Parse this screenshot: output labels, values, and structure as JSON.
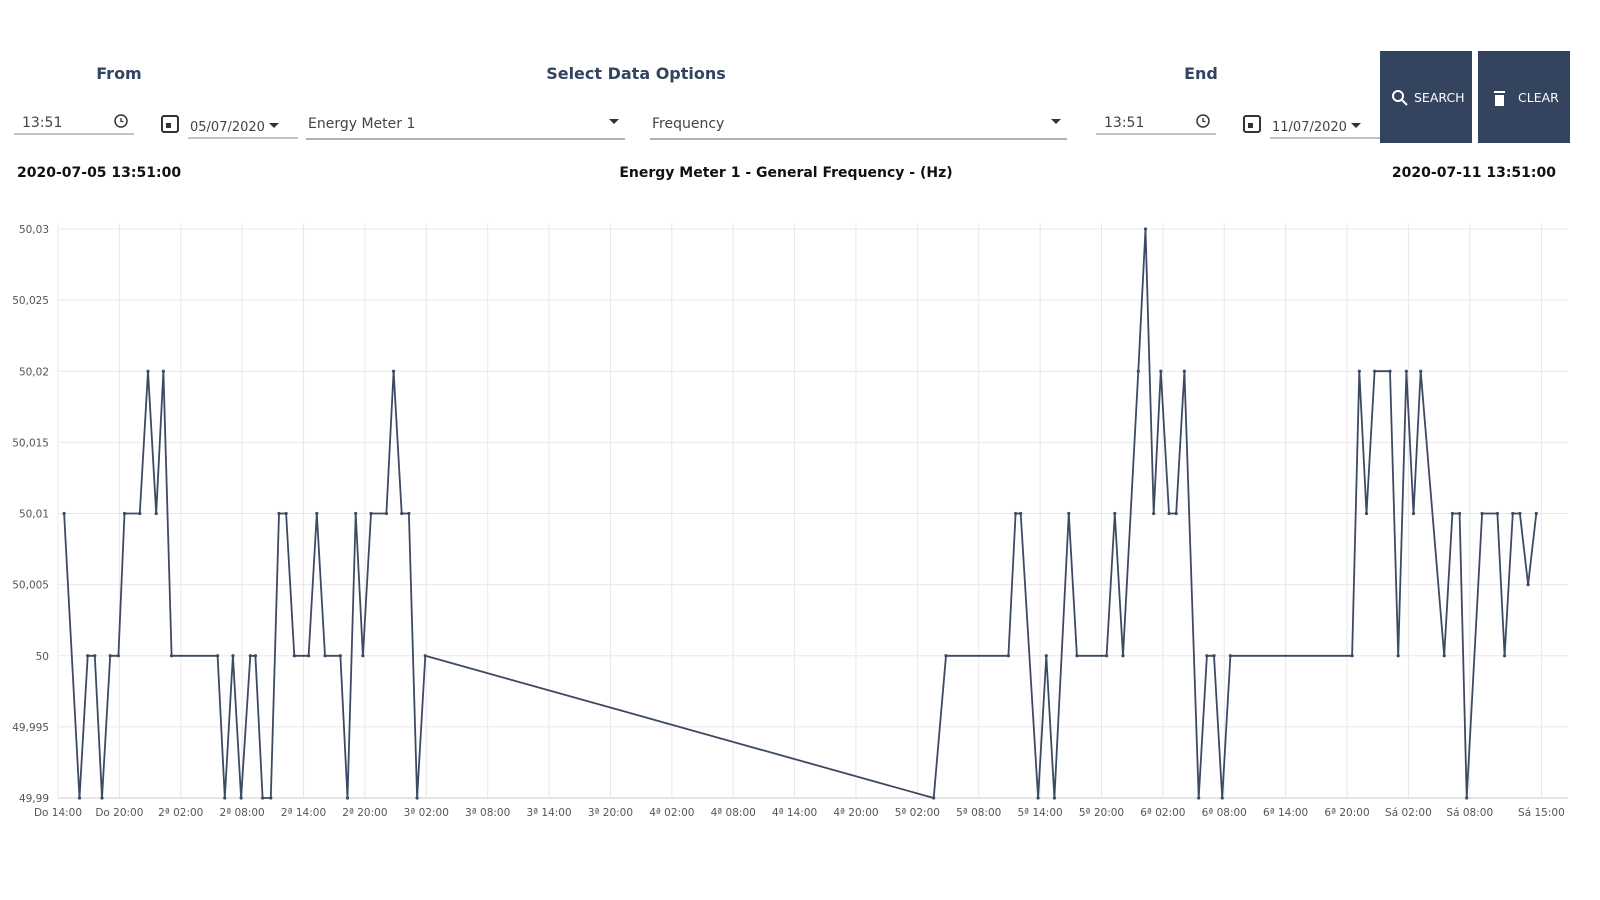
{
  "header": {
    "from_label": "From",
    "options_label": "Select Data Options",
    "end_label": "End"
  },
  "form": {
    "from_time": "13:51",
    "from_date": "05/07/2020",
    "meter": "Energy Meter 1",
    "variable": "Frequency",
    "end_time": "13:51",
    "end_date": "11/07/2020"
  },
  "buttons": {
    "search": "SEARCH",
    "clear": "CLEAR"
  },
  "chart_data": {
    "type": "line",
    "title": "Energy Meter 1 - General Frequency - (Hz)",
    "start_label": "2020-07-05 13:51:00",
    "end_label": "2020-07-11 13:51:00",
    "x": [
      14.6,
      16.1,
      16.9,
      17.6,
      18.3,
      19.1,
      19.9,
      20.5,
      22,
      22.8,
      23.6,
      24.3,
      25.1,
      29.6,
      30.3,
      31.1,
      31.9,
      32.8,
      33.3,
      34,
      34.8,
      35.6,
      36.3,
      37.1,
      38.5,
      39.3,
      40.1,
      41.6,
      42.3,
      43.1,
      43.8,
      44.6,
      46.1,
      46.8,
      47.6,
      48.3,
      49.1,
      49.9,
      99.6,
      100.8,
      106.9,
      107.6,
      108.1,
      109.8,
      110.6,
      111.4,
      112.8,
      113.6,
      116.5,
      117.3,
      118.1,
      119.6,
      120.3,
      121.1,
      121.8,
      122.6,
      123.3,
      124.1,
      125.5,
      126.3,
      127,
      127.8,
      128.6,
      140.5,
      141.2,
      141.9,
      142.7,
      144.2,
      145,
      145.8,
      146.5,
      147.2,
      149.5,
      150.3,
      151,
      151.7,
      153.2,
      154.7,
      155.4,
      156.2,
      156.9,
      157.7,
      158.5
    ],
    "series": [
      {
        "color": "#3d4a63",
        "values": [
          50.01,
          49.99,
          50,
          50,
          49.99,
          50,
          50,
          50.01,
          50.01,
          50.02,
          50.01,
          50.02,
          50,
          50,
          49.99,
          50,
          49.99,
          50,
          50,
          49.99,
          49.99,
          50.01,
          50.01,
          50,
          50,
          50.01,
          50,
          50,
          49.99,
          50.01,
          50,
          50.01,
          50.01,
          50.02,
          50.01,
          50.01,
          49.99,
          50,
          49.99,
          50,
          50,
          50.01,
          50.01,
          49.99,
          50,
          49.99,
          50.01,
          50,
          50,
          50.01,
          50,
          50.02,
          50.03,
          50.01,
          50.02,
          50.01,
          50.01,
          50.02,
          49.99,
          50,
          50,
          49.99,
          50,
          50,
          50.02,
          50.01,
          50.02,
          50.02,
          50,
          50.02,
          50.01,
          50.02,
          50,
          50.01,
          50.01,
          49.99,
          50.01,
          50.01,
          50,
          50.01,
          50.01,
          50.005,
          50.01
        ]
      }
    ],
    "xlim": [
      14,
      161.6
    ],
    "xticks": [
      {
        "value": 14,
        "label": "Do 14:00"
      },
      {
        "value": 20,
        "label": "Do 20:00"
      },
      {
        "value": 26,
        "label": "2ª 02:00"
      },
      {
        "value": 32,
        "label": "2ª 08:00"
      },
      {
        "value": 38,
        "label": "2ª 14:00"
      },
      {
        "value": 44,
        "label": "2ª 20:00"
      },
      {
        "value": 50,
        "label": "3ª 02:00"
      },
      {
        "value": 56,
        "label": "3ª 08:00"
      },
      {
        "value": 62,
        "label": "3ª 14:00"
      },
      {
        "value": 68,
        "label": "3ª 20:00"
      },
      {
        "value": 74,
        "label": "4ª 02:00"
      },
      {
        "value": 80,
        "label": "4ª 08:00"
      },
      {
        "value": 86,
        "label": "4ª 14:00"
      },
      {
        "value": 92,
        "label": "4ª 20:00"
      },
      {
        "value": 98,
        "label": "5ª 02:00"
      },
      {
        "value": 104,
        "label": "5ª 08:00"
      },
      {
        "value": 110,
        "label": "5ª 14:00"
      },
      {
        "value": 116,
        "label": "5ª 20:00"
      },
      {
        "value": 122,
        "label": "6ª 02:00"
      },
      {
        "value": 128,
        "label": "6ª 08:00"
      },
      {
        "value": 134,
        "label": "6ª 14:00"
      },
      {
        "value": 140,
        "label": "6ª 20:00"
      },
      {
        "value": 146,
        "label": "Sá 02:00"
      },
      {
        "value": 152,
        "label": "Sá 08:00"
      },
      {
        "value": 159,
        "label": "Sá 15:00"
      }
    ],
    "ylim": [
      49.99,
      50.03
    ],
    "yticks": [
      {
        "value": 49.99,
        "label": "49,99"
      },
      {
        "value": 49.995,
        "label": "49,995"
      },
      50,
      {
        "value": 50.005,
        "label": "50,005"
      },
      {
        "value": 50.01,
        "label": "50,01"
      },
      {
        "value": 50.015,
        "label": "50,015"
      },
      {
        "value": 50.02,
        "label": "50,02"
      },
      {
        "value": 50.025,
        "label": "50,025"
      },
      {
        "value": 50.03,
        "label": "50,03"
      }
    ],
    "grid": true
  }
}
